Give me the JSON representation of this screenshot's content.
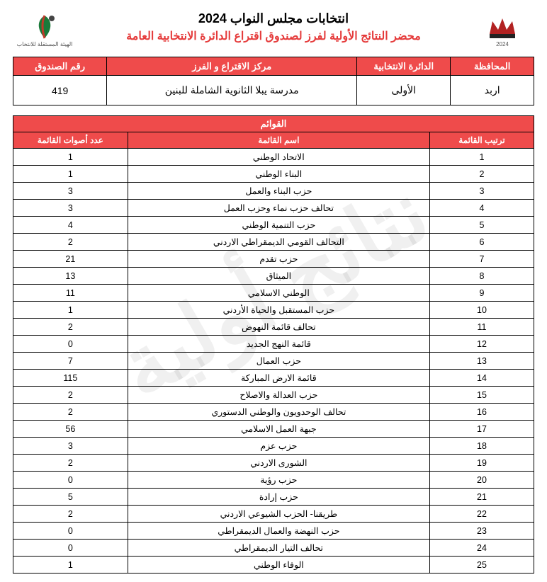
{
  "watermark": "نتائج أولية",
  "header": {
    "title1": "انتخابات مجلس النواب 2024",
    "title2": "محضر النتائج الأولية لفرز لصندوق اقتراع الدائرة الانتخابية العامة",
    "left_logo_caption": "الهيئة المستقلة للانتخاب",
    "right_logo_caption": "2024"
  },
  "info": {
    "headers": {
      "governorate": "المحافظة",
      "district": "الدائرة الانتخابية",
      "center": "مركز الاقتراع و الفرز",
      "box": "رقم الصندوق"
    },
    "values": {
      "governorate": "اربد",
      "district": "الأولى",
      "center": "مدرسة يبلا الثانوية الشاملة للبنين",
      "box": "419"
    }
  },
  "lists": {
    "caption": "القوائم",
    "headers": {
      "rank": "ترتيب القائمة",
      "name": "اسم القائمة",
      "votes": "عدد أصوات القائمة"
    },
    "rows": [
      {
        "rank": "1",
        "name": "الاتحاد الوطني",
        "votes": "1"
      },
      {
        "rank": "2",
        "name": "البناء الوطني",
        "votes": "1"
      },
      {
        "rank": "3",
        "name": "حزب البناء والعمل",
        "votes": "3"
      },
      {
        "rank": "4",
        "name": "تحالف حزب نماء وحزب العمل",
        "votes": "3"
      },
      {
        "rank": "5",
        "name": "حزب التنمية الوطني",
        "votes": "4"
      },
      {
        "rank": "6",
        "name": "التحالف القومي الديمقراطي الاردني",
        "votes": "2"
      },
      {
        "rank": "7",
        "name": "حزب تقدم",
        "votes": "21"
      },
      {
        "rank": "8",
        "name": "الميثاق",
        "votes": "13"
      },
      {
        "rank": "9",
        "name": "الوطني الاسلامي",
        "votes": "11"
      },
      {
        "rank": "10",
        "name": "حزب المستقبل والحياة الأردني",
        "votes": "1"
      },
      {
        "rank": "11",
        "name": "تحالف قائمة النهوض",
        "votes": "2"
      },
      {
        "rank": "12",
        "name": "قائمة النهج الجديد",
        "votes": "0"
      },
      {
        "rank": "13",
        "name": "حزب العمال",
        "votes": "7"
      },
      {
        "rank": "14",
        "name": "قائمة الارض المباركة",
        "votes": "115"
      },
      {
        "rank": "15",
        "name": "حزب العدالة والاصلاح",
        "votes": "2"
      },
      {
        "rank": "16",
        "name": "تحالف الوحدويون والوطني الدستوري",
        "votes": "2"
      },
      {
        "rank": "17",
        "name": "جبهة العمل الاسلامي",
        "votes": "56"
      },
      {
        "rank": "18",
        "name": "حزب عزم",
        "votes": "3"
      },
      {
        "rank": "19",
        "name": "الشورى الاردني",
        "votes": "2"
      },
      {
        "rank": "20",
        "name": "حزب رؤية",
        "votes": "0"
      },
      {
        "rank": "21",
        "name": "حزب إرادة",
        "votes": "5"
      },
      {
        "rank": "22",
        "name": "طريقنا- الحزب الشيوعي الاردني",
        "votes": "2"
      },
      {
        "rank": "23",
        "name": "حزب النهضة والعمال الديمقراطي",
        "votes": "0"
      },
      {
        "rank": "24",
        "name": "تحالف التيار الديمقراطي",
        "votes": "0"
      },
      {
        "rank": "25",
        "name": "الوفاء الوطني",
        "votes": "1"
      }
    ]
  }
}
